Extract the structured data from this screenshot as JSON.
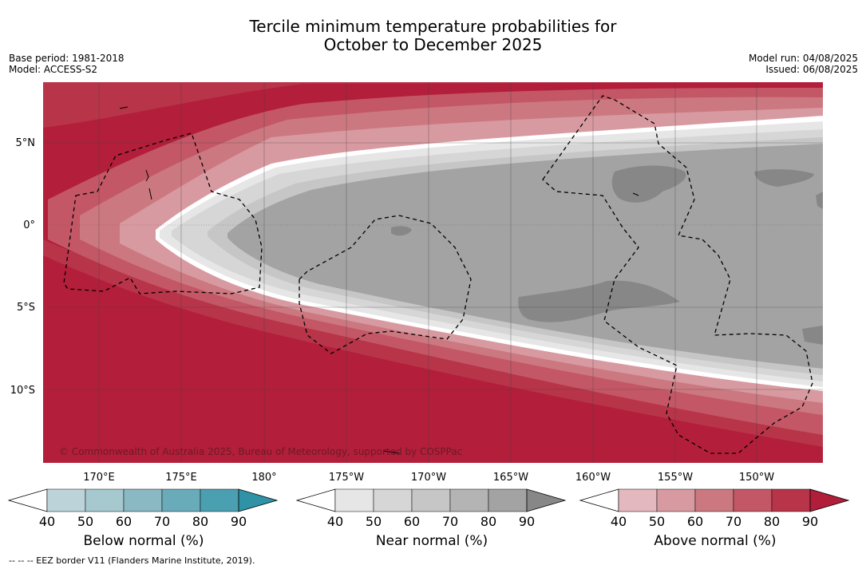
{
  "title": {
    "line1": "Tercile minimum temperature probabilities for",
    "line2": "October to December 2025"
  },
  "meta_left": {
    "base_period": "Base period: 1981-2018",
    "model": "Model: ACCESS-S2"
  },
  "meta_right": {
    "model_run": "Model run: 04/08/2025",
    "issued": "Issued: 06/08/2025"
  },
  "map": {
    "lat_labels": [
      "5°N",
      "0°",
      "5°S",
      "10°S"
    ],
    "lon_labels": [
      "170°E",
      "175°E",
      "180°",
      "175°W",
      "170°W",
      "165°W",
      "160°W",
      "155°W",
      "150°W"
    ],
    "copyright": "© Commonwealth of Australia 2025, Bureau of Meteorology, supported by COSPPac",
    "colors": {
      "above_dominant": "#b31e3a",
      "near_dominant": "#a3a3a3",
      "near_high": "#878787"
    }
  },
  "colorbars": [
    {
      "title": "Below normal (%)",
      "ticks": [
        "40",
        "50",
        "60",
        "70",
        "80",
        "90"
      ],
      "colors": [
        "#ffffff",
        "#bdd3da",
        "#a6c8cf",
        "#8ab8c3",
        "#6aabb9",
        "#4a9fb0",
        "#2f92a6"
      ]
    },
    {
      "title": "Near normal (%)",
      "ticks": [
        "40",
        "50",
        "60",
        "70",
        "80",
        "90"
      ],
      "colors": [
        "#ffffff",
        "#e6e6e6",
        "#d6d6d6",
        "#c6c6c6",
        "#b4b4b4",
        "#a3a3a3",
        "#878787"
      ]
    },
    {
      "title": "Above normal (%)",
      "ticks": [
        "40",
        "50",
        "60",
        "70",
        "80",
        "90"
      ],
      "colors": [
        "#ffffff",
        "#e3b8be",
        "#d89aa1",
        "#cc7880",
        "#c35766",
        "#b83448",
        "#b01e3a"
      ]
    }
  ],
  "footnote": "--  --  -- EEZ border V11 (Flanders Marine Institute, 2019)."
}
